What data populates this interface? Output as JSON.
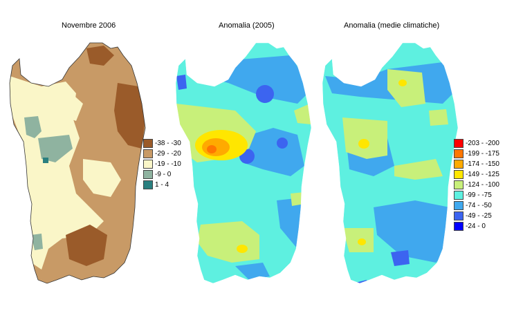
{
  "panels": [
    {
      "title": "Novembre 2006"
    },
    {
      "title": "Anomalia (2005)"
    },
    {
      "title": "Anomalia (medie climatiche)"
    }
  ],
  "legend_left": [
    {
      "label": "-38 - -30",
      "color": "#9a5b2a"
    },
    {
      "label": "-29 - -20",
      "color": "#c89a66"
    },
    {
      "label": "-19 - -10",
      "color": "#faf6c8"
    },
    {
      "label": "-9 - 0",
      "color": "#8fb3a0"
    },
    {
      "label": "1 - 4",
      "color": "#2a8080"
    }
  ],
  "legend_right": [
    {
      "label": "-203 - -200",
      "color": "#ff0000"
    },
    {
      "label": "-199 - -175",
      "color": "#ff7700"
    },
    {
      "label": "-174 - -150",
      "color": "#ffaa00"
    },
    {
      "label": "-149 - -125",
      "color": "#ffe600"
    },
    {
      "label": "-124 - -100",
      "color": "#c8f07a"
    },
    {
      "label": "-99 - -75",
      "color": "#5ef0e0"
    },
    {
      "label": "-74 - -50",
      "color": "#40a8ee"
    },
    {
      "label": "-49 - -25",
      "color": "#3c64f0"
    },
    {
      "label": "-24 - 0",
      "color": "#0000ff"
    }
  ]
}
